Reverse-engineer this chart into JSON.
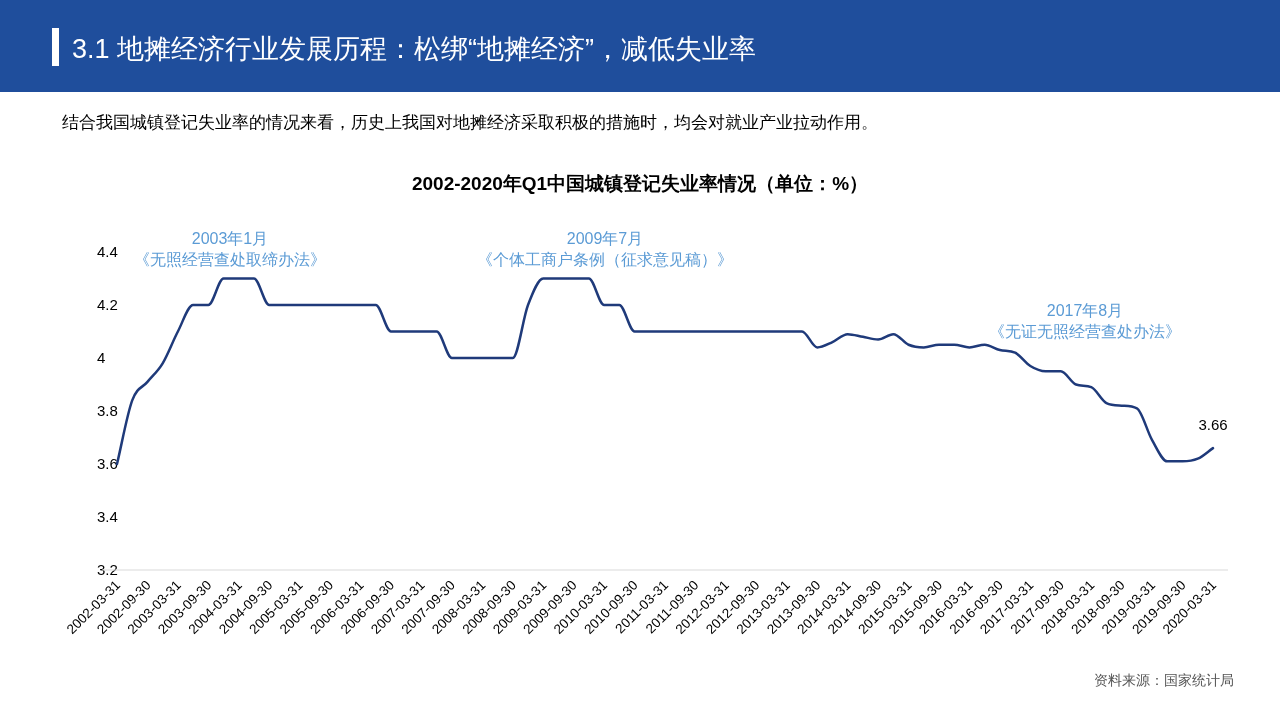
{
  "chart_data": {
    "type": "line",
    "title": "2002-2020年Q1中国城镇登记失业率情况（单位：%）",
    "annotations": [
      "3.1 地摊经济行业发展历程：松绑“地摊经济”，减低失业率",
      "结合我国城镇登记失业率的情况来看，历史上我国对地摊经济采取积极的措施时，均会对就业产业拉动作用。",
      "2003年1月",
      "《无照经营查处取缔办法》",
      "2009年7月",
      "《个体工商户条例（征求意见稿）》",
      "2017年8月",
      "《无证无照经营查处办法》",
      "资料来源：国家统计局"
    ],
    "categories": [
      "2002-03-31",
      null,
      "2002-09-30",
      null,
      "2003-03-31",
      null,
      "2003-09-30",
      null,
      "2004-03-31",
      null,
      "2004-09-30",
      null,
      "2005-03-31",
      null,
      "2005-09-30",
      null,
      "2006-03-31",
      null,
      "2006-09-30",
      null,
      "2007-03-31",
      null,
      "2007-09-30",
      null,
      "2008-03-31",
      null,
      "2008-09-30",
      null,
      "2009-03-31",
      null,
      "2009-09-30",
      null,
      "2010-03-31",
      null,
      "2010-09-30",
      null,
      "2011-03-31",
      null,
      "2011-09-30",
      null,
      "2012-03-31",
      null,
      "2012-09-30",
      null,
      "2013-03-31",
      null,
      "2013-09-30",
      null,
      "2014-03-31",
      null,
      "2014-09-30",
      null,
      "2015-03-31",
      null,
      "2015-09-30",
      null,
      "2016-03-31",
      null,
      "2016-09-30",
      null,
      "2017-03-31",
      null,
      "2017-09-30",
      null,
      "2018-03-31",
      null,
      "2018-09-30",
      null,
      "2019-03-31",
      null,
      "2019-09-30",
      null,
      "2020-03-31"
    ],
    "series": [
      {
        "color": "#1f3a7a",
        "values": [
          3.6,
          3.84,
          3.91,
          3.98,
          4.1,
          4.2,
          4.2,
          4.3,
          4.3,
          4.3,
          4.2,
          4.2,
          4.2,
          4.2,
          4.2,
          4.2,
          4.2,
          4.2,
          4.1,
          4.1,
          4.1,
          4.1,
          4.0,
          4.0,
          4.0,
          4.0,
          4.0,
          4.2,
          4.3,
          4.3,
          4.3,
          4.3,
          4.2,
          4.2,
          4.1,
          4.1,
          4.1,
          4.1,
          4.1,
          4.1,
          4.1,
          4.1,
          4.1,
          4.1,
          4.1,
          4.1,
          4.04,
          4.06,
          4.09,
          4.08,
          4.07,
          4.09,
          4.05,
          4.04,
          4.05,
          4.05,
          4.04,
          4.05,
          4.03,
          4.02,
          3.97,
          3.95,
          3.95,
          3.9,
          3.89,
          3.83,
          3.82,
          3.81,
          3.69,
          3.61,
          3.61,
          3.62,
          3.66
        ],
        "value_labels": [
          null,
          null,
          null,
          null,
          null,
          null,
          null,
          null,
          null,
          null,
          null,
          null,
          null,
          null,
          null,
          null,
          null,
          null,
          null,
          null,
          null,
          null,
          null,
          null,
          null,
          null,
          null,
          null,
          null,
          null,
          null,
          null,
          null,
          null,
          null,
          null,
          null,
          null,
          null,
          null,
          null,
          null,
          null,
          null,
          null,
          null,
          null,
          null,
          null,
          null,
          null,
          null,
          null,
          null,
          null,
          null,
          null,
          null,
          null,
          null,
          null,
          null,
          null,
          null,
          null,
          null,
          null,
          null,
          null,
          null,
          null,
          null,
          "3.66"
        ]
      }
    ],
    "ylim": [
      3.2,
      4.4
    ],
    "yticks": [
      3.2,
      3.4,
      3.6,
      3.8,
      4,
      4.2,
      4.4
    ],
    "grid": false,
    "marker": "none",
    "line_style": "solid"
  }
}
